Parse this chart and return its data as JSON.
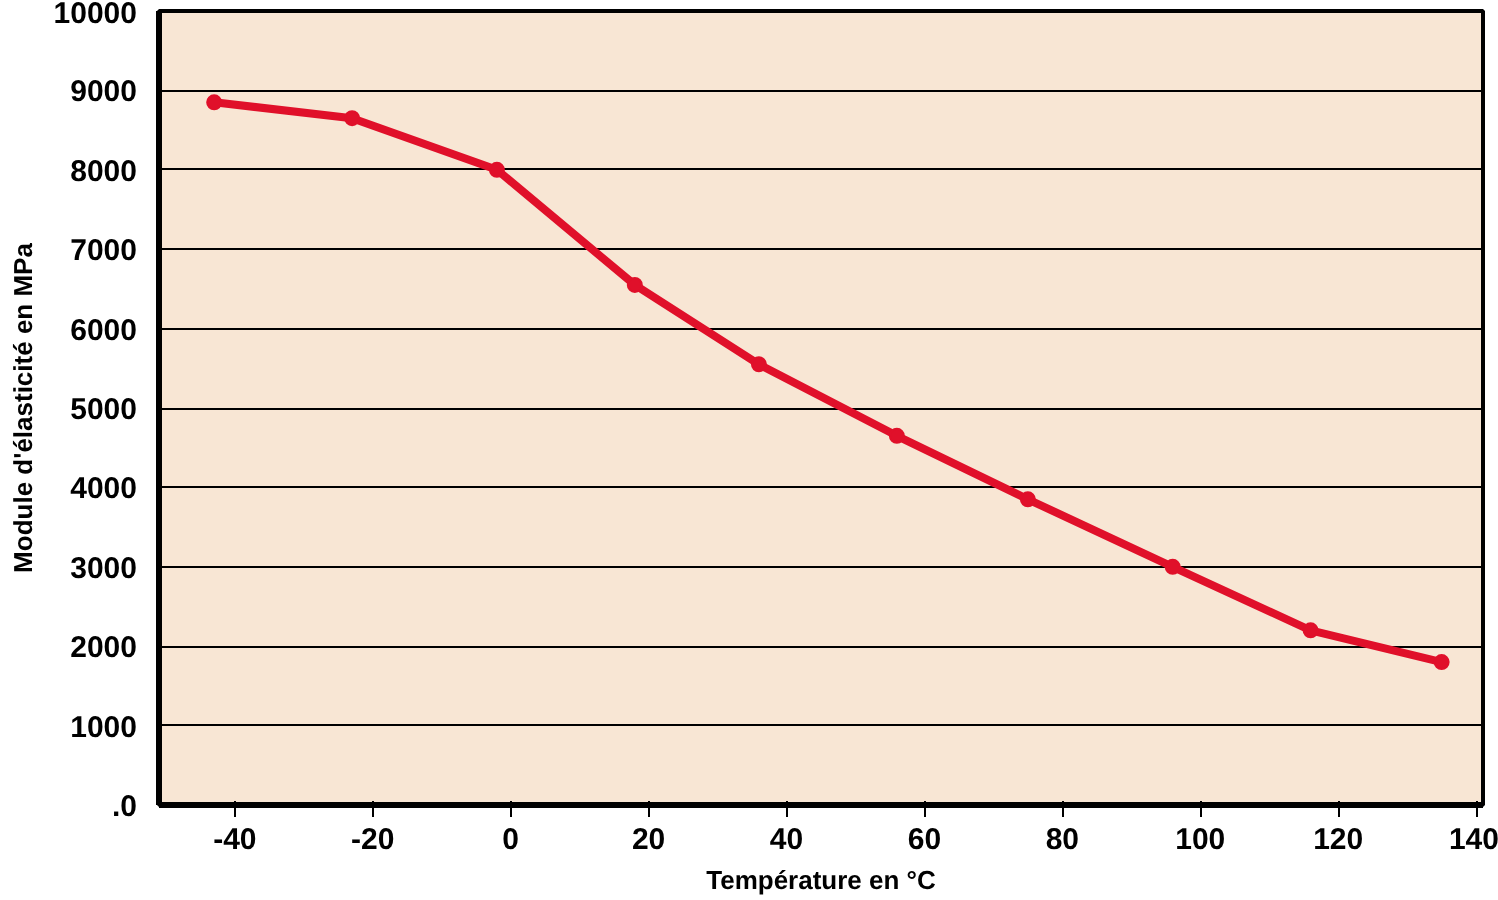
{
  "chart_data": {
    "type": "line",
    "xlabel": "Température en °C",
    "ylabel": "Module d'élasticité en MPa",
    "x": [
      -43,
      -23,
      -2,
      18,
      36,
      56,
      75,
      96,
      116,
      135
    ],
    "series": [
      {
        "color": "#e0102a",
        "values": [
          8850,
          8650,
          8000,
          6550,
          5550,
          4650,
          3850,
          3000,
          2200,
          1800
        ]
      }
    ],
    "xlim": [
      -51,
      141
    ],
    "xticks": [
      -40,
      -20,
      0,
      20,
      40,
      60,
      80,
      100,
      120,
      140
    ],
    "ylim": [
      0,
      10000
    ],
    "yticks": [
      {
        "value": 0,
        "label": ".0"
      },
      1000,
      2000,
      3000,
      4000,
      5000,
      6000,
      7000,
      8000,
      9000,
      10000
    ],
    "grid": "y",
    "marker": "circle",
    "line_style": "solid"
  }
}
